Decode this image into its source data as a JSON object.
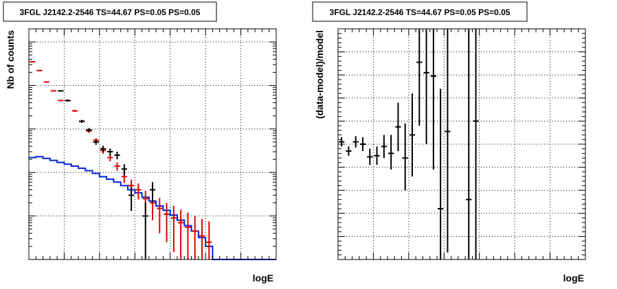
{
  "chart_data": [
    {
      "type": "scatter",
      "title": "3FGL J2142.2-2546 TS=44.67 PS=0.05 PS=0.05",
      "xlabel": "logE",
      "ylabel": "Nb of counts",
      "xlim": [
        2,
        5.5
      ],
      "ylim": [
        0.1,
        20000
      ],
      "yscale": "log",
      "grid": true,
      "xticks": [
        "2",
        "2.5",
        "3",
        "3.5",
        "4",
        "4.5",
        "5",
        "5.5"
      ],
      "yticks": [
        {
          "v": 0.1,
          "label": "10",
          "sup": "-1"
        },
        {
          "v": 1,
          "label": "1",
          "sup": ""
        },
        {
          "v": 10,
          "label": "10",
          "sup": ""
        },
        {
          "v": 100,
          "label": "10",
          "sup": "2"
        },
        {
          "v": 1000,
          "label": "10",
          "sup": "3"
        },
        {
          "v": 10000,
          "label": "10",
          "sup": "4"
        }
      ],
      "bin_width": 0.1,
      "series": [
        {
          "color": "#000000",
          "style": "errorbar",
          "points": [
            {
              "x": 2.45,
              "y": 750,
              "lo": 723,
              "hi": 777
            },
            {
              "x": 2.55,
              "y": 450,
              "lo": 429,
              "hi": 471
            },
            {
              "x": 2.75,
              "y": 150,
              "lo": 138,
              "hi": 162
            },
            {
              "x": 2.85,
              "y": 95,
              "lo": 85,
              "hi": 105
            },
            {
              "x": 2.95,
              "y": 50,
              "lo": 43,
              "hi": 57
            },
            {
              "x": 3.05,
              "y": 35,
              "lo": 29,
              "hi": 41
            },
            {
              "x": 3.15,
              "y": 30,
              "lo": 24.5,
              "hi": 35.5
            },
            {
              "x": 3.25,
              "y": 25,
              "lo": 20,
              "hi": 30
            },
            {
              "x": 3.35,
              "y": 12,
              "lo": 8.5,
              "hi": 15.5
            },
            {
              "x": 3.45,
              "y": 3,
              "lo": 1.3,
              "hi": 4.7
            },
            {
              "x": 3.65,
              "y": 1,
              "lo": 0.1,
              "hi": 2.1
            },
            {
              "x": 3.75,
              "y": 4,
              "lo": 2,
              "hi": 6
            }
          ]
        },
        {
          "color": "#e00000",
          "style": "errorbar",
          "points": [
            {
              "x": 2.05,
              "y": 3500,
              "lo": 3500,
              "hi": 3500
            },
            {
              "x": 2.15,
              "y": 2200,
              "lo": 2200,
              "hi": 2200
            },
            {
              "x": 2.25,
              "y": 1200,
              "lo": 1200,
              "hi": 1200
            },
            {
              "x": 2.35,
              "y": 750,
              "lo": 750,
              "hi": 750
            },
            {
              "x": 2.45,
              "y": 450,
              "lo": 450,
              "hi": 450
            },
            {
              "x": 2.55,
              "y": 450,
              "lo": 420,
              "hi": 480
            },
            {
              "x": 2.65,
              "y": 260,
              "lo": 245,
              "hi": 275
            },
            {
              "x": 2.75,
              "y": 150,
              "lo": 140,
              "hi": 160
            },
            {
              "x": 2.85,
              "y": 90,
              "lo": 82,
              "hi": 98
            },
            {
              "x": 2.95,
              "y": 55,
              "lo": 49,
              "hi": 61
            },
            {
              "x": 3.05,
              "y": 32,
              "lo": 27,
              "hi": 37
            },
            {
              "x": 3.15,
              "y": 22,
              "lo": 18,
              "hi": 26
            },
            {
              "x": 3.25,
              "y": 14,
              "lo": 11,
              "hi": 17
            },
            {
              "x": 3.35,
              "y": 8,
              "lo": 5.7,
              "hi": 10.3
            },
            {
              "x": 3.45,
              "y": 5,
              "lo": 3.2,
              "hi": 6.8
            },
            {
              "x": 3.55,
              "y": 4,
              "lo": 2.4,
              "hi": 5.6
            },
            {
              "x": 3.65,
              "y": 2.5,
              "lo": 1.2,
              "hi": 3.8
            },
            {
              "x": 3.75,
              "y": 2,
              "lo": 0.8,
              "hi": 3.2
            },
            {
              "x": 3.85,
              "y": 1.5,
              "lo": 0.4,
              "hi": 2.6
            },
            {
              "x": 3.95,
              "y": 1.1,
              "lo": 0.25,
              "hi": 2.0
            },
            {
              "x": 4.05,
              "y": 0.9,
              "lo": 0.15,
              "hi": 1.7
            },
            {
              "x": 4.15,
              "y": 0.7,
              "lo": 0.1,
              "hi": 1.4
            },
            {
              "x": 4.25,
              "y": 0.55,
              "lo": 0.1,
              "hi": 1.2
            },
            {
              "x": 4.35,
              "y": 0.45,
              "lo": 0.1,
              "hi": 1.0
            },
            {
              "x": 4.45,
              "y": 0.35,
              "lo": 0.1,
              "hi": 0.85
            },
            {
              "x": 4.55,
              "y": 0.25,
              "lo": 0.1,
              "hi": 0.75
            }
          ]
        },
        {
          "color": "#0022dd",
          "style": "step",
          "edges": [
            2.0,
            2.1,
            2.2,
            2.3,
            2.4,
            2.5,
            2.6,
            2.7,
            2.8,
            2.9,
            3.0,
            3.1,
            3.2,
            3.3,
            3.4,
            3.5,
            3.6,
            3.7,
            3.8,
            3.9,
            4.0,
            4.1,
            4.2,
            4.3,
            4.4,
            4.5,
            4.6,
            5.5
          ],
          "values": [
            22,
            23,
            21,
            19,
            17,
            15.5,
            14,
            12.5,
            11,
            9.5,
            8,
            7,
            6,
            5,
            4,
            3.4,
            2.7,
            2.2,
            1.7,
            1.35,
            1.05,
            0.8,
            0.6,
            0.45,
            0.32,
            0.2,
            0.1
          ]
        }
      ]
    },
    {
      "type": "scatter",
      "title": "3FGL J2142.2-2546 TS=44.67 PS=0.05 PS=0.05",
      "xlabel": "logE",
      "ylabel": "(data-model)/model",
      "xlim": [
        2,
        5.5
      ],
      "ylim": [
        -0.5,
        0.5
      ],
      "grid": true,
      "xticks": [
        "2",
        "2.5",
        "3",
        "3.5",
        "4",
        "4.5",
        "5",
        "5.5"
      ],
      "yticks": [
        "-0.5",
        "-0.4",
        "-0.3",
        "-0.2",
        "-0.1",
        "0",
        "0.1",
        "0.2",
        "0.3",
        "0.4",
        "0.5"
      ],
      "bin_width": 0.1,
      "series": [
        {
          "color": "#000000",
          "style": "errorbar",
          "points": [
            {
              "x": 2.05,
              "y": 0.01,
              "lo": -0.01,
              "hi": 0.03
            },
            {
              "x": 2.15,
              "y": -0.03,
              "lo": -0.05,
              "hi": -0.01
            },
            {
              "x": 2.25,
              "y": 0.01,
              "lo": -0.015,
              "hi": 0.035
            },
            {
              "x": 2.35,
              "y": 0.0,
              "lo": -0.03,
              "hi": 0.03
            },
            {
              "x": 2.45,
              "y": -0.055,
              "lo": -0.09,
              "hi": -0.02
            },
            {
              "x": 2.55,
              "y": -0.05,
              "lo": -0.09,
              "hi": -0.01
            },
            {
              "x": 2.65,
              "y": -0.01,
              "lo": -0.06,
              "hi": 0.04
            },
            {
              "x": 2.75,
              "y": -0.04,
              "lo": -0.11,
              "hi": 0.04
            },
            {
              "x": 2.85,
              "y": 0.075,
              "lo": -0.03,
              "hi": 0.18
            },
            {
              "x": 2.95,
              "y": -0.06,
              "lo": -0.2,
              "hi": 0.09
            },
            {
              "x": 3.05,
              "y": 0.04,
              "lo": -0.14,
              "hi": 0.22
            },
            {
              "x": 3.15,
              "y": 0.355,
              "lo": 0.08,
              "hi": 0.5
            },
            {
              "x": 3.25,
              "y": 0.31,
              "lo": 0.0,
              "hi": 0.5
            },
            {
              "x": 3.35,
              "y": 0.295,
              "lo": -0.11,
              "hi": 0.5
            },
            {
              "x": 3.45,
              "y": -0.28,
              "lo": -0.5,
              "hi": 0.24
            },
            {
              "x": 3.55,
              "y": 0.055,
              "lo": -0.47,
              "hi": 0.5
            },
            {
              "x": 3.85,
              "y": -0.24,
              "lo": -0.5,
              "hi": 0.5
            },
            {
              "x": 3.95,
              "y": 0.1,
              "lo": -0.5,
              "hi": 0.5
            }
          ]
        }
      ]
    }
  ]
}
